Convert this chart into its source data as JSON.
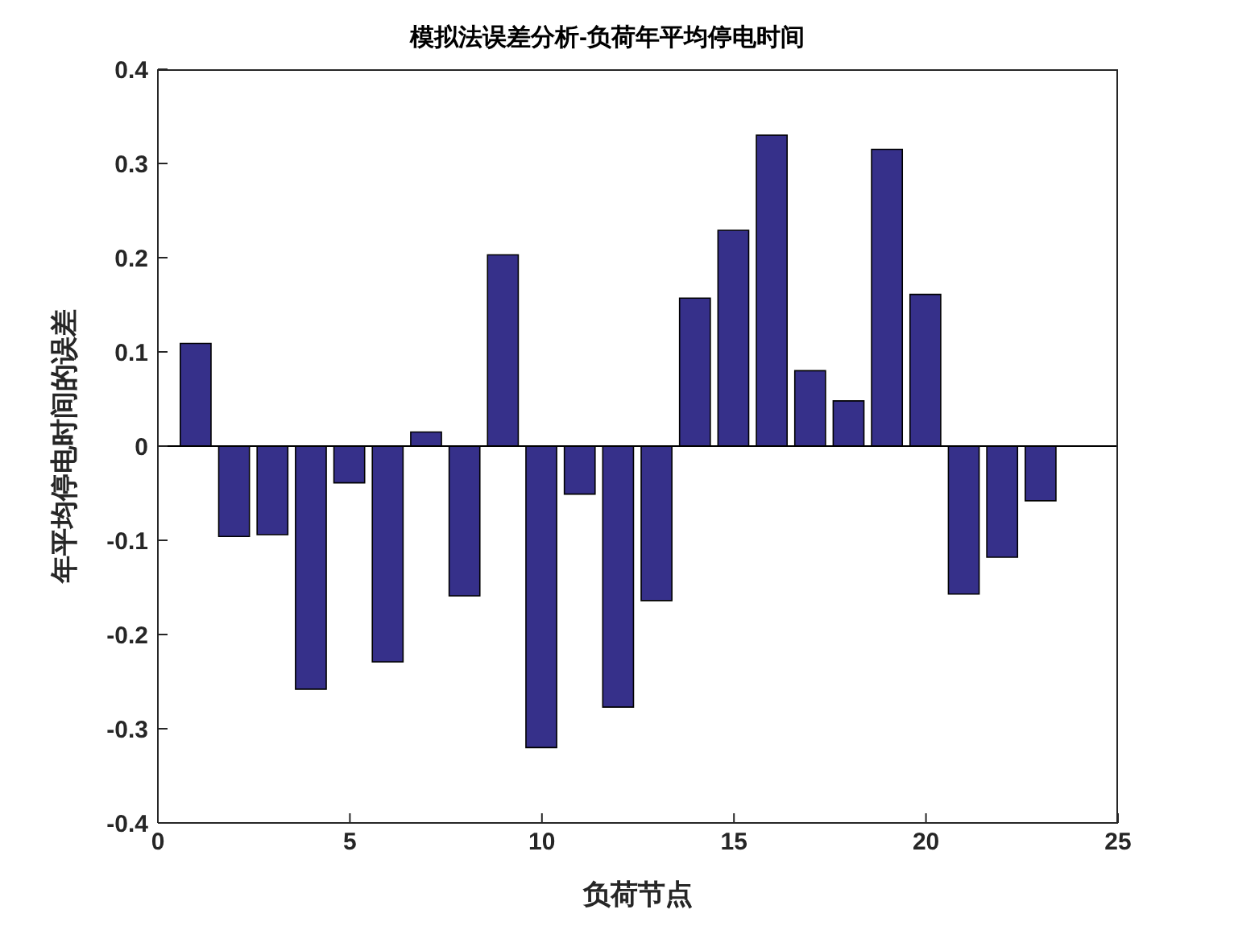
{
  "chart_data": {
    "type": "bar",
    "title": "模拟法误差分析-负荷年平均停电时间",
    "xlabel": "负荷节点",
    "ylabel": "年平均停电时间的误差",
    "x": [
      1,
      2,
      3,
      4,
      5,
      6,
      7,
      8,
      9,
      10,
      11,
      12,
      13,
      14,
      15,
      16,
      17,
      18,
      19,
      20,
      21,
      22,
      23
    ],
    "values": [
      0.109,
      -0.096,
      -0.094,
      -0.258,
      -0.039,
      -0.229,
      0.015,
      -0.159,
      0.203,
      -0.32,
      -0.051,
      -0.277,
      -0.164,
      0.157,
      0.229,
      0.33,
      0.08,
      0.048,
      0.315,
      0.161,
      -0.157,
      -0.118,
      -0.058
    ],
    "color": "#36308a",
    "xlim": [
      0,
      25
    ],
    "xticks": [
      0,
      5,
      10,
      15,
      20,
      25
    ],
    "ylim": [
      -0.4,
      0.4
    ],
    "yticks": [
      -0.4,
      -0.3,
      -0.2,
      -0.1,
      0,
      0.1,
      0.2,
      0.3,
      0.4
    ],
    "legend": false
  }
}
